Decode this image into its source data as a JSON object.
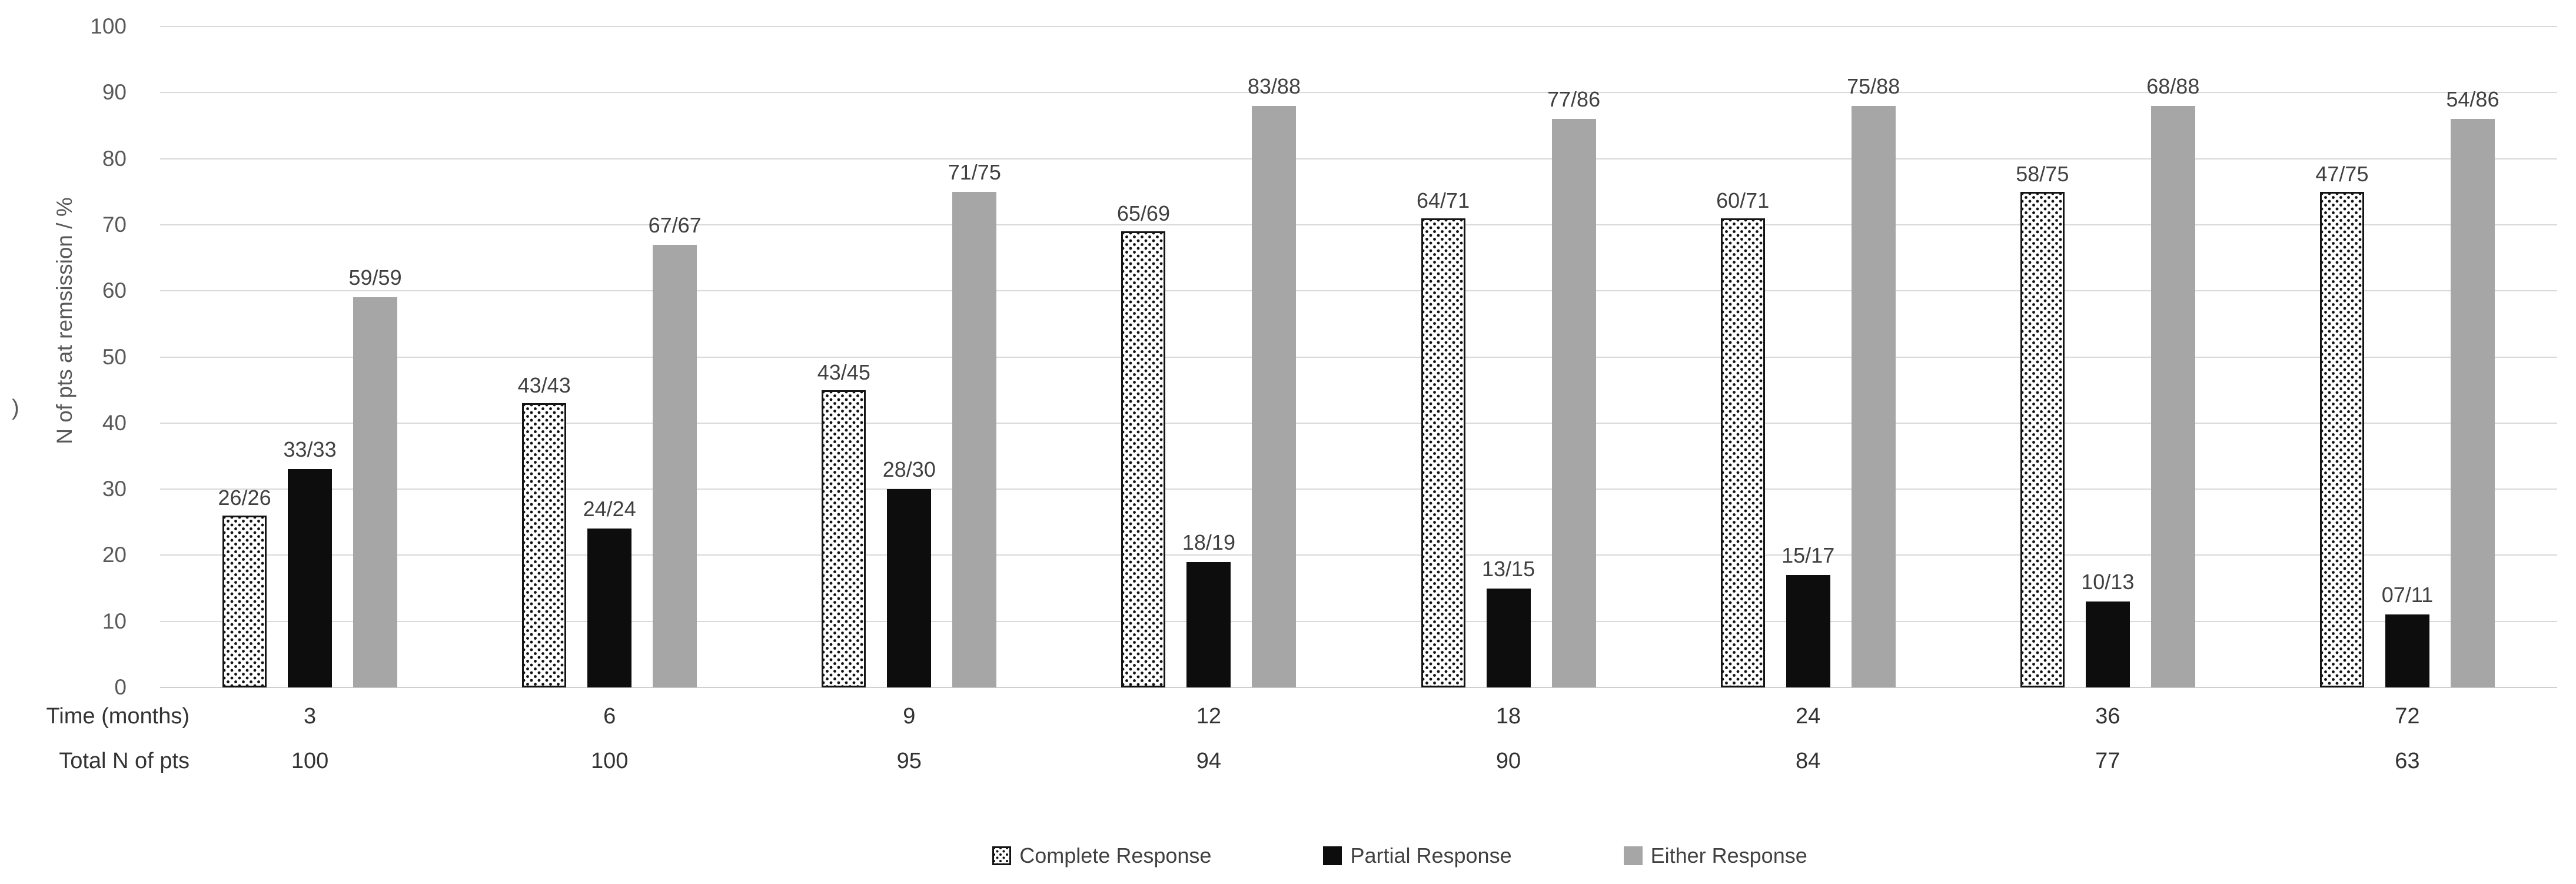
{
  "stray_mark": ")",
  "y_axis": {
    "title": "N of pts at remsission / %",
    "ticks": [
      "100",
      "90",
      "80",
      "70",
      "60",
      "50",
      "40",
      "30",
      "20",
      "10",
      "0"
    ]
  },
  "x_rows": [
    {
      "label": "Time (months)",
      "values": [
        "3",
        "6",
        "9",
        "12",
        "18",
        "24",
        "36",
        "72"
      ]
    },
    {
      "label": "Total N of pts",
      "values": [
        "100",
        "100",
        "95",
        "94",
        "90",
        "84",
        "77",
        "63"
      ]
    }
  ],
  "legend": {
    "items": [
      {
        "label": "Complete Response",
        "style": "dotted",
        "icon": "dotted-pattern-swatch-icon"
      },
      {
        "label": "Partial Response",
        "style": "black",
        "icon": "black-square-swatch-icon"
      },
      {
        "label": "Either Response",
        "style": "gray",
        "icon": "gray-square-swatch-icon"
      }
    ]
  },
  "colors": {
    "gray_bar": "#a6a6a6",
    "black_bar": "#0d0d0d",
    "dotted_bar_border": "#141414",
    "gridline": "#d9d9d9",
    "tick_text": "#595959",
    "bar_label_text": "#404040",
    "axis_row_text": "#333333"
  },
  "chart_data": {
    "type": "bar",
    "title": "",
    "xlabel": "Time (months)",
    "ylabel": "N of pts at remsission / %",
    "ylim": [
      0,
      100
    ],
    "y_tick_step": 10,
    "grid": true,
    "legend_position": "bottom",
    "categories": [
      "3",
      "6",
      "9",
      "12",
      "18",
      "24",
      "36",
      "72"
    ],
    "total_n_of_pts": [
      100,
      100,
      95,
      94,
      90,
      84,
      77,
      63
    ],
    "series": [
      {
        "name": "Complete Response",
        "style": "dotted",
        "values": [
          26,
          43,
          45,
          69,
          71,
          71,
          75,
          75
        ],
        "bar_labels": [
          "26/26",
          "43/43",
          "43/45",
          "65/69",
          "64/71",
          "60/71",
          "58/75",
          "47/75"
        ]
      },
      {
        "name": "Partial Response",
        "style": "black",
        "values": [
          33,
          24,
          30,
          19,
          15,
          17,
          13,
          11
        ],
        "bar_labels": [
          "33/33",
          "24/24",
          "28/30",
          "18/19",
          "13/15",
          "15/17",
          "10/13",
          "07/11"
        ]
      },
      {
        "name": "Either Response",
        "style": "gray",
        "values": [
          59,
          67,
          75,
          88,
          86,
          88,
          88,
          86
        ],
        "bar_labels": [
          "59/59",
          "67/67",
          "71/75",
          "83/88",
          "77/86",
          "75/88",
          "68/88",
          "54/86"
        ]
      }
    ]
  }
}
